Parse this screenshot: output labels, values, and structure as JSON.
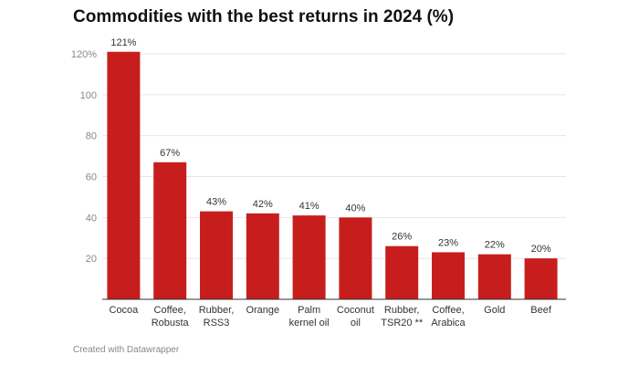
{
  "title": "Commodities with the best returns in 2024 (%)",
  "footer": "Created with Datawrapper",
  "colors": {
    "bar": "#c71e1d",
    "grid": "#e6e6e6",
    "axis": "#333333",
    "tick_text": "#888888",
    "label_text": "#333333"
  },
  "chart_data": {
    "type": "bar",
    "categories": [
      [
        "Cocoa"
      ],
      [
        "Coffee,",
        "Robusta"
      ],
      [
        "Rubber,",
        "RSS3"
      ],
      [
        "Orange"
      ],
      [
        "Palm",
        "kernel oil"
      ],
      [
        "Coconut",
        "oil"
      ],
      [
        "Rubber,",
        "TSR20 **"
      ],
      [
        "Coffee,",
        "Arabica"
      ],
      [
        "Gold"
      ],
      [
        "Beef"
      ]
    ],
    "values": [
      121,
      67,
      43,
      42,
      41,
      40,
      26,
      23,
      22,
      20
    ],
    "value_labels": [
      "121%",
      "67%",
      "43%",
      "42%",
      "41%",
      "40%",
      "26%",
      "23%",
      "22%",
      "20%"
    ],
    "yticks": [
      20,
      40,
      60,
      80,
      100,
      120
    ],
    "ytick_labels": [
      "20",
      "40",
      "60",
      "80",
      "100",
      "120%"
    ],
    "ylim": [
      0,
      120
    ],
    "grid": true,
    "xlabel": "",
    "ylabel": ""
  }
}
